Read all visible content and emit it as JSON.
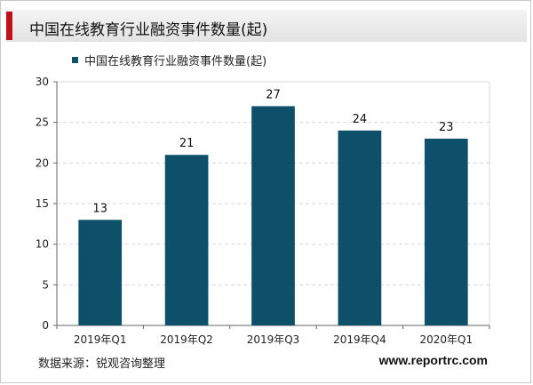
{
  "header": {
    "title": "中国在线教育行业融资事件数量(起)"
  },
  "footer": {
    "source": "数据来源：锐观咨询整理",
    "website": "www.reportrc.com"
  },
  "colors": {
    "bar": "#0e5069",
    "accent": "#c1121c",
    "grid": "#d9d9d9"
  },
  "chart_data": {
    "type": "bar",
    "title": "",
    "categories": [
      "2019年Q1",
      "2019年Q2",
      "2019年Q3",
      "2019年Q4",
      "2020年Q1"
    ],
    "series": [
      {
        "name": "中国在线教育行业融资事件数量(起)",
        "values": [
          13,
          21,
          27,
          24,
          23
        ]
      }
    ],
    "xlabel": "",
    "ylabel": "",
    "ylim": [
      0,
      30
    ],
    "yticks": [
      0,
      5,
      10,
      15,
      20,
      25,
      30
    ],
    "grid": true,
    "legend": "top-left",
    "data_labels": true
  }
}
